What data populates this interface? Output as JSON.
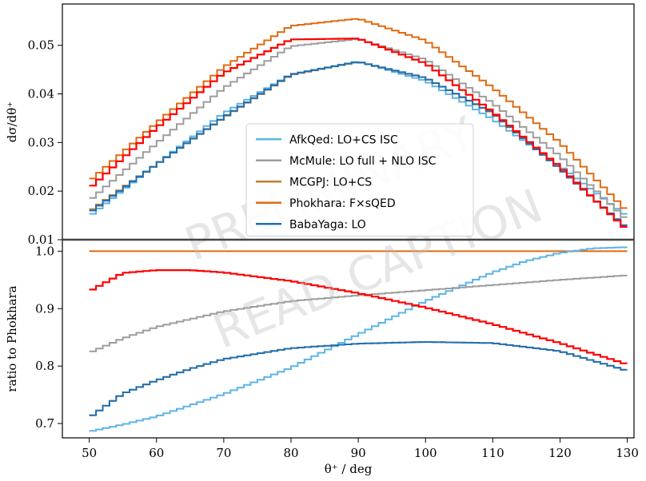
{
  "watermark": [
    "PRELIMINARY",
    "READ CAPTION"
  ],
  "chart_data": [
    {
      "type": "line",
      "panel": "top",
      "ylabel": "dσ/dθ⁺",
      "xlim": [
        46,
        131
      ],
      "ylim": [
        0.01,
        0.0585
      ],
      "yticks": [
        0.01,
        0.02,
        0.03,
        0.04,
        0.05
      ],
      "ytick_labels": [
        "0.01",
        "0.02",
        "0.03",
        "0.04",
        "0.05"
      ],
      "grid": false,
      "legend_position": "center",
      "series": [
        {
          "name": "AfkQed: LO+CS ISC",
          "color": "#5db4e5",
          "x": [
            50,
            60,
            70,
            80,
            90,
            100,
            110,
            120,
            130
          ],
          "values": [
            0.0148,
            0.0255,
            0.036,
            0.044,
            0.0467,
            0.0427,
            0.0348,
            0.0252,
            0.0148
          ]
        },
        {
          "name": "McMule: LO full + NLO ISC",
          "color": "#9c9c9c",
          "x": [
            50,
            60,
            70,
            80,
            90,
            100,
            110,
            120,
            130
          ],
          "values": [
            0.018,
            0.0298,
            0.0412,
            0.0498,
            0.0513,
            0.0471,
            0.0381,
            0.0272,
            0.014
          ]
        },
        {
          "name": "MCGPJ: LO+CS",
          "color": "#c47a32",
          "x": [
            50,
            60,
            70,
            80,
            90,
            100,
            110,
            120,
            130
          ],
          "values": [
            0.0158,
            0.0255,
            0.0351,
            0.0439,
            0.0466,
            0.0433,
            0.036,
            0.0246,
            0.0122
          ]
        },
        {
          "name": "Phokhara: F×sQED",
          "color": "#e06a10",
          "x": [
            50,
            60,
            70,
            80,
            90,
            100,
            110,
            120,
            130
          ],
          "values": [
            0.022,
            0.034,
            0.0455,
            0.054,
            0.0555,
            0.051,
            0.0413,
            0.03,
            0.0158
          ]
        },
        {
          "name": "BabaYaga: LO",
          "color": "#1f6fb0",
          "x": [
            50,
            60,
            70,
            80,
            90,
            100,
            110,
            120,
            130
          ],
          "values": [
            0.0155,
            0.0255,
            0.0352,
            0.044,
            0.0466,
            0.0433,
            0.0361,
            0.0246,
            0.0124
          ]
        },
        {
          "name": "",
          "color": "#ff0000",
          "x": [
            50,
            60,
            70,
            80,
            90,
            100,
            110,
            120,
            130
          ],
          "values": [
            0.0205,
            0.033,
            0.0443,
            0.0512,
            0.0514,
            0.0463,
            0.0363,
            0.025,
            0.012
          ]
        }
      ]
    },
    {
      "type": "line",
      "panel": "bottom",
      "xlabel": "θ⁺ / deg",
      "ylabel": "ratio to Phokhara",
      "xlim": [
        46,
        131
      ],
      "ylim": [
        0.675,
        1.02
      ],
      "xticks": [
        50,
        60,
        70,
        80,
        90,
        100,
        110,
        120,
        130
      ],
      "xtick_labels": [
        "50",
        "60",
        "70",
        "80",
        "90",
        "100",
        "110",
        "120",
        "130"
      ],
      "yticks": [
        0.7,
        0.8,
        0.9,
        1.0
      ],
      "ytick_labels": [
        "0.7",
        "0.8",
        "0.9",
        "1.0"
      ],
      "grid": false,
      "series": [
        {
          "name": "Phokhara: F×sQED",
          "color": "#e06a10",
          "x": [
            50,
            130
          ],
          "values": [
            1.0,
            1.0
          ]
        },
        {
          "name": "AfkQed: LO+CS ISC",
          "color": "#5db4e5",
          "x": [
            50,
            55,
            60,
            70,
            80,
            90,
            100,
            110,
            115,
            120,
            125,
            130
          ],
          "values": [
            0.686,
            0.698,
            0.712,
            0.751,
            0.797,
            0.855,
            0.913,
            0.963,
            0.983,
            0.997,
            1.005,
            1.007
          ]
        },
        {
          "name": "McMule: LO full + NLO ISC",
          "color": "#9c9c9c",
          "x": [
            50,
            55,
            60,
            70,
            80,
            90,
            100,
            110,
            120,
            130
          ],
          "values": [
            0.823,
            0.848,
            0.868,
            0.895,
            0.913,
            0.923,
            0.932,
            0.941,
            0.95,
            0.958
          ]
        },
        {
          "name": "MCGPJ: LO+CS",
          "color": "#c47a32",
          "x": [
            50,
            55,
            60,
            65,
            70,
            80,
            90,
            100,
            110,
            120,
            130
          ],
          "values": [
            0.71,
            0.752,
            0.775,
            0.795,
            0.812,
            0.831,
            0.839,
            0.842,
            0.84,
            0.826,
            0.792
          ]
        },
        {
          "name": "BabaYaga: LO",
          "color": "#1f6fb0",
          "x": [
            50,
            55,
            60,
            65,
            70,
            80,
            90,
            100,
            110,
            120,
            130
          ],
          "values": [
            0.71,
            0.752,
            0.775,
            0.795,
            0.812,
            0.831,
            0.839,
            0.842,
            0.84,
            0.826,
            0.792
          ]
        },
        {
          "name": "",
          "color": "#ff0000",
          "x": [
            50,
            55,
            60,
            65,
            70,
            80,
            90,
            100,
            110,
            120,
            130
          ],
          "values": [
            0.93,
            0.962,
            0.967,
            0.967,
            0.963,
            0.948,
            0.927,
            0.902,
            0.873,
            0.84,
            0.803
          ]
        }
      ]
    }
  ]
}
